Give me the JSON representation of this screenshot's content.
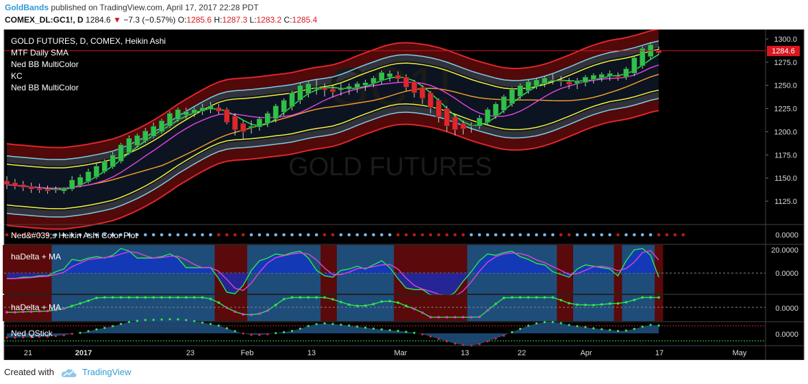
{
  "header": {
    "author": "GoldBands",
    "published_text": "published on TradingView.com, April 17, 2017 22:28 PDT",
    "symbol": "COMEX_DL:GC1!, D",
    "last": "1284.6",
    "change": "−7.3 (−0.57%)",
    "o_label": "O:",
    "o_value": "1285.6",
    "h_label": "H:",
    "h_value": "1287.3",
    "l_label": "L:",
    "l_value": "1283.2",
    "c_label": "C:",
    "c_value": "1285.4"
  },
  "legend": {
    "title": "GOLD FUTURES, D, COMEX, Heikin Ashi",
    "items": [
      "MTF Daily SMA",
      "Ned BB MultiColor",
      "KC",
      "Ned BB MultiColor"
    ]
  },
  "watermark": {
    "symbol": "GC1!",
    "name": "GOLD FUTURES"
  },
  "panes": {
    "p1_label": "Ned&#039;s Heikin Ashi Color Plot",
    "p2_label": "haDelta + MA",
    "p3_label": "haDelta + MA",
    "p4_label": "Ned QStick"
  },
  "footer": {
    "created_with": "Created with",
    "brand": "TradingView"
  },
  "colors": {
    "background": "#000000",
    "bull": "#2fc04a",
    "bear": "#e0262b",
    "price_label": "#d8171f",
    "axis_text": "#dddddd",
    "grid_border": "#444444"
  },
  "chart_data": {
    "type": "candlestick",
    "title": "GOLD FUTURES, D, COMEX, Heikin Ashi",
    "y_axis": {
      "ticks": [
        1125.0,
        1150.0,
        1175.0,
        1200.0,
        1225.0,
        1250.0,
        1275.0,
        1300.0
      ],
      "range": [
        1100,
        1308
      ]
    },
    "last_price_label": "1284.6",
    "x_ticks": [
      "21",
      "2017",
      "23",
      "Feb",
      "13",
      "Mar",
      "13",
      "22",
      "Apr",
      "17",
      "May"
    ],
    "candles": [
      {
        "o": 1147,
        "h": 1152,
        "l": 1138,
        "c": 1143
      },
      {
        "o": 1145,
        "h": 1149,
        "l": 1138,
        "c": 1141
      },
      {
        "o": 1143,
        "h": 1147,
        "l": 1136,
        "c": 1140
      },
      {
        "o": 1141,
        "h": 1145,
        "l": 1134,
        "c": 1138
      },
      {
        "o": 1139,
        "h": 1144,
        "l": 1134,
        "c": 1137
      },
      {
        "o": 1138,
        "h": 1142,
        "l": 1133,
        "c": 1136
      },
      {
        "o": 1137,
        "h": 1141,
        "l": 1134,
        "c": 1138
      },
      {
        "o": 1136,
        "h": 1140,
        "l": 1133,
        "c": 1139
      },
      {
        "o": 1138,
        "h": 1152,
        "l": 1136,
        "c": 1148
      },
      {
        "o": 1142,
        "h": 1154,
        "l": 1140,
        "c": 1151
      },
      {
        "o": 1146,
        "h": 1160,
        "l": 1144,
        "c": 1157
      },
      {
        "o": 1151,
        "h": 1166,
        "l": 1149,
        "c": 1163
      },
      {
        "o": 1157,
        "h": 1170,
        "l": 1155,
        "c": 1168
      },
      {
        "o": 1162,
        "h": 1178,
        "l": 1160,
        "c": 1175
      },
      {
        "o": 1168,
        "h": 1188,
        "l": 1166,
        "c": 1186
      },
      {
        "o": 1177,
        "h": 1196,
        "l": 1175,
        "c": 1193
      },
      {
        "o": 1185,
        "h": 1198,
        "l": 1183,
        "c": 1196
      },
      {
        "o": 1190,
        "h": 1204,
        "l": 1188,
        "c": 1201
      },
      {
        "o": 1195,
        "h": 1210,
        "l": 1193,
        "c": 1206
      },
      {
        "o": 1200,
        "h": 1214,
        "l": 1198,
        "c": 1212
      },
      {
        "o": 1206,
        "h": 1222,
        "l": 1204,
        "c": 1220
      },
      {
        "o": 1213,
        "h": 1226,
        "l": 1211,
        "c": 1224
      },
      {
        "o": 1218,
        "h": 1226,
        "l": 1214,
        "c": 1222
      },
      {
        "o": 1220,
        "h": 1226,
        "l": 1216,
        "c": 1224
      },
      {
        "o": 1222,
        "h": 1230,
        "l": 1218,
        "c": 1226
      },
      {
        "o": 1224,
        "h": 1232,
        "l": 1220,
        "c": 1228
      },
      {
        "o": 1226,
        "h": 1230,
        "l": 1219,
        "c": 1222
      },
      {
        "o": 1224,
        "h": 1226,
        "l": 1208,
        "c": 1210
      },
      {
        "o": 1217,
        "h": 1220,
        "l": 1196,
        "c": 1202
      },
      {
        "o": 1209,
        "h": 1212,
        "l": 1192,
        "c": 1200
      },
      {
        "o": 1204,
        "h": 1212,
        "l": 1198,
        "c": 1206
      },
      {
        "o": 1205,
        "h": 1216,
        "l": 1201,
        "c": 1214
      },
      {
        "o": 1209,
        "h": 1222,
        "l": 1205,
        "c": 1220
      },
      {
        "o": 1214,
        "h": 1230,
        "l": 1210,
        "c": 1228
      },
      {
        "o": 1221,
        "h": 1236,
        "l": 1217,
        "c": 1234
      },
      {
        "o": 1227,
        "h": 1244,
        "l": 1223,
        "c": 1242
      },
      {
        "o": 1234,
        "h": 1252,
        "l": 1230,
        "c": 1250
      },
      {
        "o": 1241,
        "h": 1254,
        "l": 1237,
        "c": 1252
      },
      {
        "o": 1246,
        "h": 1256,
        "l": 1240,
        "c": 1248
      },
      {
        "o": 1247,
        "h": 1252,
        "l": 1238,
        "c": 1245
      },
      {
        "o": 1246,
        "h": 1250,
        "l": 1237,
        "c": 1243
      },
      {
        "o": 1245,
        "h": 1252,
        "l": 1239,
        "c": 1247
      },
      {
        "o": 1246,
        "h": 1252,
        "l": 1240,
        "c": 1249
      },
      {
        "o": 1247,
        "h": 1254,
        "l": 1242,
        "c": 1252
      },
      {
        "o": 1250,
        "h": 1256,
        "l": 1244,
        "c": 1253
      },
      {
        "o": 1252,
        "h": 1260,
        "l": 1248,
        "c": 1258
      },
      {
        "o": 1255,
        "h": 1266,
        "l": 1251,
        "c": 1264
      },
      {
        "o": 1259,
        "h": 1266,
        "l": 1254,
        "c": 1263
      },
      {
        "o": 1261,
        "h": 1265,
        "l": 1253,
        "c": 1257
      },
      {
        "o": 1259,
        "h": 1262,
        "l": 1244,
        "c": 1248
      },
      {
        "o": 1254,
        "h": 1256,
        "l": 1237,
        "c": 1242
      },
      {
        "o": 1248,
        "h": 1250,
        "l": 1230,
        "c": 1236
      },
      {
        "o": 1242,
        "h": 1244,
        "l": 1220,
        "c": 1226
      },
      {
        "o": 1234,
        "h": 1236,
        "l": 1210,
        "c": 1216
      },
      {
        "o": 1225,
        "h": 1228,
        "l": 1200,
        "c": 1206
      },
      {
        "o": 1216,
        "h": 1218,
        "l": 1196,
        "c": 1202
      },
      {
        "o": 1209,
        "h": 1212,
        "l": 1197,
        "c": 1203
      },
      {
        "o": 1206,
        "h": 1210,
        "l": 1199,
        "c": 1207
      },
      {
        "o": 1206,
        "h": 1218,
        "l": 1203,
        "c": 1215
      },
      {
        "o": 1210,
        "h": 1226,
        "l": 1207,
        "c": 1224
      },
      {
        "o": 1217,
        "h": 1232,
        "l": 1214,
        "c": 1230
      },
      {
        "o": 1223,
        "h": 1240,
        "l": 1220,
        "c": 1238
      },
      {
        "o": 1230,
        "h": 1248,
        "l": 1227,
        "c": 1246
      },
      {
        "o": 1238,
        "h": 1252,
        "l": 1235,
        "c": 1250
      },
      {
        "o": 1244,
        "h": 1256,
        "l": 1241,
        "c": 1254
      },
      {
        "o": 1249,
        "h": 1258,
        "l": 1246,
        "c": 1256
      },
      {
        "o": 1252,
        "h": 1260,
        "l": 1248,
        "c": 1258
      },
      {
        "o": 1255,
        "h": 1262,
        "l": 1251,
        "c": 1256
      },
      {
        "o": 1255,
        "h": 1260,
        "l": 1249,
        "c": 1254
      },
      {
        "o": 1254,
        "h": 1258,
        "l": 1246,
        "c": 1251
      },
      {
        "o": 1252,
        "h": 1258,
        "l": 1246,
        "c": 1255
      },
      {
        "o": 1253,
        "h": 1261,
        "l": 1249,
        "c": 1259
      },
      {
        "o": 1256,
        "h": 1263,
        "l": 1252,
        "c": 1261
      },
      {
        "o": 1258,
        "h": 1264,
        "l": 1254,
        "c": 1262
      },
      {
        "o": 1260,
        "h": 1266,
        "l": 1255,
        "c": 1263
      },
      {
        "o": 1260,
        "h": 1264,
        "l": 1255,
        "c": 1258
      },
      {
        "o": 1259,
        "h": 1270,
        "l": 1256,
        "c": 1268
      },
      {
        "o": 1263,
        "h": 1282,
        "l": 1260,
        "c": 1280
      },
      {
        "o": 1271,
        "h": 1292,
        "l": 1268,
        "c": 1290
      },
      {
        "o": 1281,
        "h": 1296,
        "l": 1278,
        "c": 1294
      },
      {
        "o": 1288,
        "h": 1292,
        "l": 1283,
        "c": 1285
      }
    ]
  }
}
